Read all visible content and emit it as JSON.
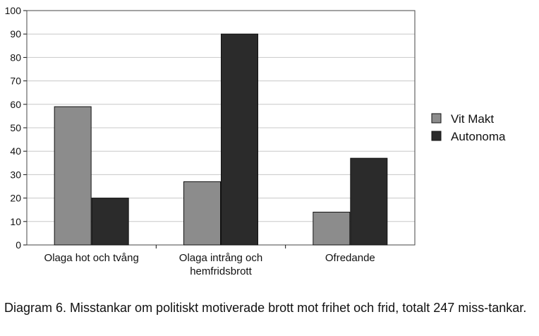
{
  "chart_data": {
    "type": "bar",
    "categories": [
      [
        "Olaga hot och tvång"
      ],
      [
        "Olaga intrång och",
        "hemfridsbrott"
      ],
      [
        "Ofredande"
      ]
    ],
    "series": [
      {
        "name": "Vit Makt",
        "values": [
          59,
          27,
          14
        ],
        "color": "#8c8c8c"
      },
      {
        "name": "Autonoma",
        "values": [
          20,
          90,
          37
        ],
        "color": "#2b2b2b"
      }
    ],
    "ylim": [
      0,
      100
    ],
    "yticks": [
      0,
      10,
      20,
      30,
      40,
      50,
      60,
      70,
      80,
      90,
      100
    ],
    "grid": true,
    "legend_position": "right"
  },
  "caption": "Diagram 6. Misstankar om politiskt motiverade brott mot frihet och frid, totalt 247 miss-tankar."
}
